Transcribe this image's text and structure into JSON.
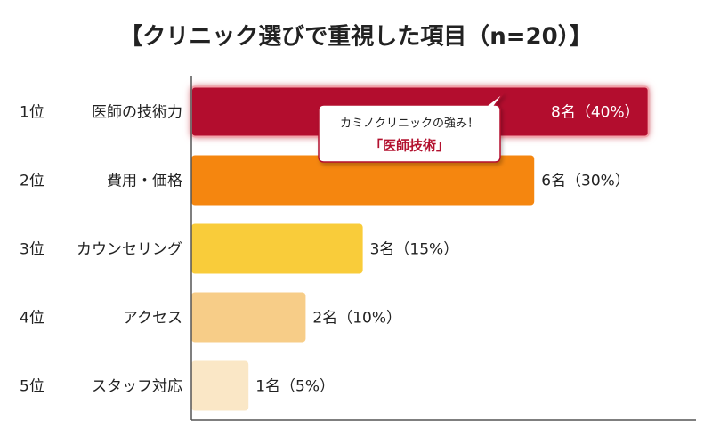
{
  "chart_data": {
    "type": "hbar",
    "title": "【クリニック選びで重視した項目（n=20）】",
    "ranks": [
      "1位",
      "2位",
      "3位",
      "4位",
      "5位"
    ],
    "categories": [
      "医師の技術力",
      "費用・価格",
      "カウンセリング",
      "アクセス",
      "スタッフ対応"
    ],
    "values": [
      8,
      6,
      3,
      2,
      1
    ],
    "value_labels": [
      "8名（40%）",
      "6名（30%）",
      "3名（15%）",
      "2名（10%）",
      "1名（5%）"
    ],
    "colors": [
      "#b3112f",
      "#f5860f",
      "#f9cc3a",
      "#f7cd88",
      "#fae7c6"
    ],
    "xlim": [
      0,
      8.8
    ],
    "annotation": {
      "text": "カミノクリニックの強み！",
      "highlight": "「医師技術」"
    }
  }
}
